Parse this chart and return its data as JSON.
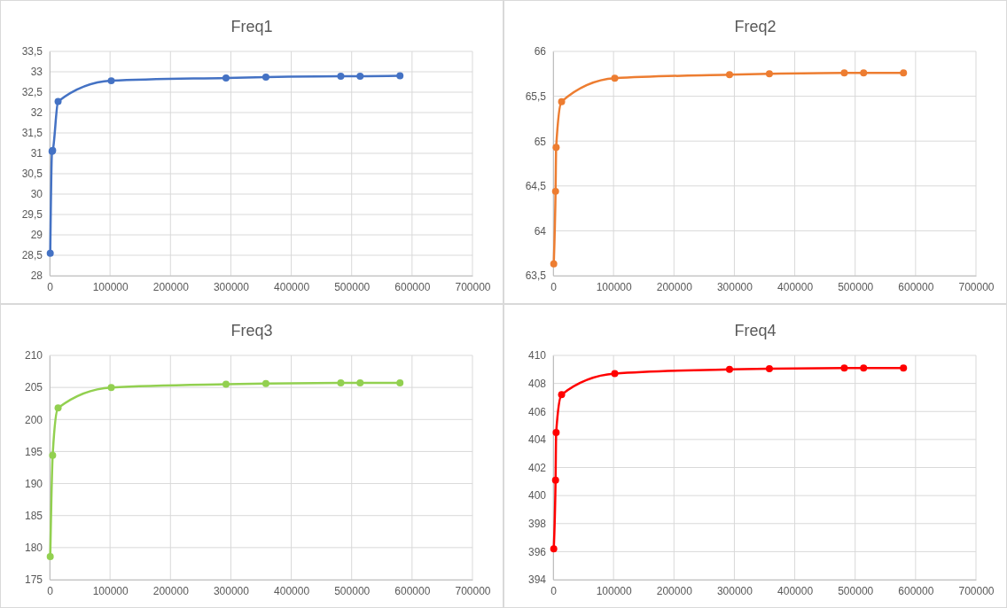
{
  "chart_data": [
    {
      "type": "line",
      "title": "Freq1",
      "x": [
        1000,
        4000,
        5000,
        14000,
        102000,
        292000,
        358000,
        482000,
        514000,
        580000
      ],
      "series": [
        {
          "color": "#4472c4",
          "values": [
            28.55,
            31.05,
            31.07,
            32.27,
            32.78,
            32.85,
            32.87,
            32.89,
            32.89,
            32.9
          ]
        }
      ],
      "xlim": [
        0,
        700000
      ],
      "xticks": [
        0,
        100000,
        200000,
        300000,
        400000,
        500000,
        600000,
        700000
      ],
      "ylim": [
        28,
        33.5
      ],
      "yticks": [
        28,
        {
          "value": 28.5,
          "label": "28,5"
        },
        29,
        {
          "value": 29.5,
          "label": "29,5"
        },
        30,
        {
          "value": 30.5,
          "label": "30,5"
        },
        31,
        {
          "value": 31.5,
          "label": "31,5"
        },
        32,
        {
          "value": 32.5,
          "label": "32,5"
        },
        33,
        {
          "value": 33.5,
          "label": "33,5"
        }
      ],
      "grid": true,
      "legend": false,
      "marker": "circle",
      "line_style": "solid"
    },
    {
      "type": "line",
      "title": "Freq2",
      "x": [
        1000,
        4000,
        5000,
        14000,
        102000,
        292000,
        358000,
        482000,
        514000,
        580000
      ],
      "series": [
        {
          "color": "#ed7d31",
          "values": [
            63.63,
            64.44,
            64.93,
            65.44,
            65.7,
            65.74,
            65.75,
            65.76,
            65.76,
            65.76
          ]
        }
      ],
      "xlim": [
        0,
        700000
      ],
      "xticks": [
        0,
        100000,
        200000,
        300000,
        400000,
        500000,
        600000,
        700000
      ],
      "ylim": [
        63.5,
        66
      ],
      "yticks": [
        {
          "value": 63.5,
          "label": "63,5"
        },
        64,
        {
          "value": 64.5,
          "label": "64,5"
        },
        65,
        {
          "value": 65.5,
          "label": "65,5"
        },
        66
      ],
      "grid": true,
      "legend": false,
      "marker": "circle",
      "line_style": "solid"
    },
    {
      "type": "line",
      "title": "Freq3",
      "x": [
        1000,
        4000,
        5000,
        14000,
        102000,
        292000,
        358000,
        482000,
        514000,
        580000
      ],
      "series": [
        {
          "color": "#92d050",
          "values": [
            178.6,
            null,
            194.4,
            201.8,
            205.0,
            205.5,
            205.6,
            205.7,
            205.7,
            205.7
          ]
        }
      ],
      "xlim": [
        0,
        700000
      ],
      "xticks": [
        0,
        100000,
        200000,
        300000,
        400000,
        500000,
        600000,
        700000
      ],
      "ylim": [
        175,
        210
      ],
      "yticks": [
        175,
        180,
        185,
        190,
        195,
        200,
        205,
        210
      ],
      "grid": true,
      "legend": false,
      "marker": "circle",
      "line_style": "solid"
    },
    {
      "type": "line",
      "title": "Freq4",
      "x": [
        1000,
        4000,
        5000,
        14000,
        102000,
        292000,
        358000,
        482000,
        514000,
        580000
      ],
      "series": [
        {
          "color": "#ff0000",
          "values": [
            396.2,
            401.1,
            404.5,
            407.2,
            408.7,
            409.0,
            409.05,
            409.1,
            409.1,
            409.1
          ]
        }
      ],
      "xlim": [
        0,
        700000
      ],
      "xticks": [
        0,
        100000,
        200000,
        300000,
        400000,
        500000,
        600000,
        700000
      ],
      "ylim": [
        394,
        410
      ],
      "yticks": [
        394,
        396,
        398,
        400,
        402,
        404,
        406,
        408,
        410
      ],
      "grid": true,
      "legend": false,
      "marker": "circle",
      "line_style": "solid"
    }
  ]
}
